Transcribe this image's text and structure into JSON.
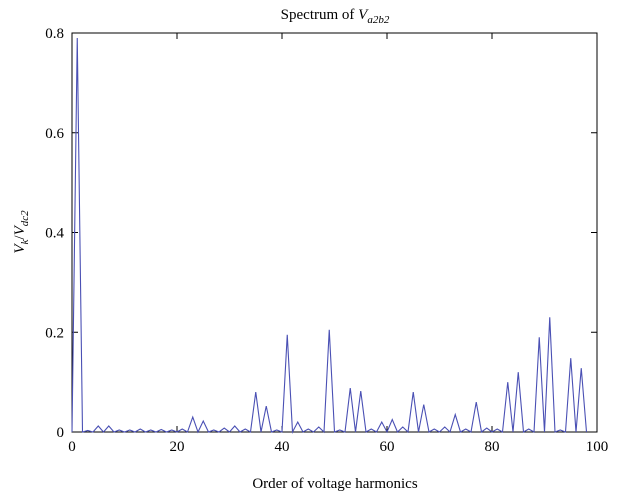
{
  "chart_data": {
    "type": "line",
    "title": {
      "text": "Spectrum of",
      "symbol": "V",
      "subscript": "a2b2"
    },
    "x_label": "Order of voltage harmonics",
    "y_label": {
      "symbol": "V",
      "subscript": "k",
      "separator": "/",
      "symbol2": "V",
      "subscript2": "dc2"
    },
    "x": [
      0,
      1,
      2,
      3,
      4,
      5,
      6,
      7,
      8,
      9,
      10,
      11,
      12,
      13,
      14,
      15,
      16,
      17,
      18,
      19,
      20,
      21,
      22,
      23,
      24,
      25,
      26,
      27,
      28,
      29,
      30,
      31,
      32,
      33,
      34,
      35,
      36,
      37,
      38,
      39,
      40,
      41,
      42,
      43,
      44,
      45,
      46,
      47,
      48,
      49,
      50,
      51,
      52,
      53,
      54,
      55,
      56,
      57,
      58,
      59,
      60,
      61,
      62,
      63,
      64,
      65,
      66,
      67,
      68,
      69,
      70,
      71,
      72,
      73,
      74,
      75,
      76,
      77,
      78,
      79,
      80,
      81,
      82,
      83,
      84,
      85,
      86,
      87,
      88,
      89,
      90,
      91,
      92,
      93,
      94,
      95,
      96,
      97,
      98
    ],
    "series": [
      {
        "color": "#4a50b4",
        "values": [
          0,
          0.79,
          0,
          0.003,
          0,
          0.012,
          0,
          0.012,
          0,
          0.004,
          0,
          0.004,
          0,
          0.006,
          0,
          0.004,
          0,
          0.005,
          0,
          0.004,
          0,
          0.006,
          0,
          0.03,
          0,
          0.022,
          0,
          0.004,
          0,
          0.008,
          0,
          0.012,
          0,
          0.006,
          0,
          0.08,
          0,
          0.052,
          0,
          0.004,
          0,
          0.195,
          0,
          0.02,
          0,
          0.006,
          0,
          0.01,
          0,
          0.205,
          0,
          0.004,
          0,
          0.088,
          0,
          0.082,
          0,
          0.006,
          0,
          0.02,
          0,
          0.025,
          0,
          0.01,
          0,
          0.08,
          0,
          0.055,
          0,
          0.006,
          0,
          0.01,
          0,
          0.035,
          0,
          0.006,
          0,
          0.06,
          0,
          0.008,
          0,
          0.006,
          0,
          0.1,
          0,
          0.12,
          0,
          0.006,
          0,
          0.19,
          0,
          0.23,
          0,
          0.004,
          0,
          0.148,
          0,
          0.128,
          0
        ]
      }
    ],
    "xlim": [
      0,
      100
    ],
    "xticks": [
      0,
      20,
      40,
      60,
      80,
      100
    ],
    "ylim": [
      0,
      0.8
    ],
    "yticks": [
      0,
      0.2,
      0.4,
      0.6,
      0.8
    ]
  }
}
